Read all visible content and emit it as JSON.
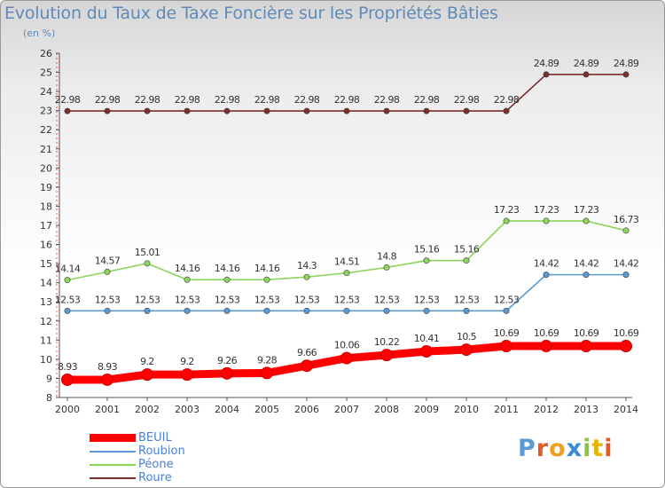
{
  "page": {
    "title": "Evolution du Taux de Taxe Foncière sur les Propriétés Bâties",
    "subtitle": "(en %)"
  },
  "logo": {
    "text": "Proxiti",
    "letters": [
      {
        "ch": "P",
        "color": "#5b9bd5"
      },
      {
        "ch": "r",
        "color": "#e05a2a"
      },
      {
        "ch": "o",
        "color": "#f0a020"
      },
      {
        "ch": "x",
        "color": "#3b8ad6"
      },
      {
        "ch": "i",
        "color": "#8cc63f"
      },
      {
        "ch": "t",
        "color": "#e8b400"
      },
      {
        "ch": "i",
        "color": "#e05a2a"
      }
    ]
  },
  "legend_label_color": "#4a7fd4",
  "chart_data": {
    "type": "line",
    "title": "Evolution du Taux de Taxe Foncière sur les Propriétés Bâties",
    "subtitle": "(en %)",
    "xlabel": "",
    "ylabel": "",
    "x": [
      "2000",
      "2001",
      "2002",
      "2003",
      "2004",
      "2005",
      "2006",
      "2007",
      "2008",
      "2009",
      "2010",
      "2011",
      "2012",
      "2013",
      "2014"
    ],
    "ylim": [
      8,
      26
    ],
    "yticks": [
      8,
      9,
      10,
      11,
      12,
      13,
      14,
      15,
      16,
      17,
      18,
      19,
      20,
      21,
      22,
      23,
      24,
      25,
      26
    ],
    "grid": false,
    "legend_position": "bottom-left",
    "series": [
      {
        "name": "BEUIL",
        "color": "#ff0000",
        "values": [
          8.93,
          8.93,
          9.2,
          9.2,
          9.26,
          9.28,
          9.66,
          10.06,
          10.22,
          10.41,
          10.5,
          10.69,
          10.69,
          10.69,
          10.69
        ],
        "labels": [
          "8.93",
          "8.93",
          "9.2",
          "9.2",
          "9.26",
          "9.28",
          "9.66",
          "10.06",
          "10.22",
          "10.41",
          "10.5",
          "10.69",
          "10.69",
          "10.69",
          "10.69"
        ]
      },
      {
        "name": "Roubion",
        "color": "#5b9bd5",
        "values": [
          12.53,
          12.53,
          12.53,
          12.53,
          12.53,
          12.53,
          12.53,
          12.53,
          12.53,
          12.53,
          12.53,
          12.53,
          14.42,
          14.42,
          14.42
        ],
        "labels": [
          "12.53",
          "12.53",
          "12.53",
          "12.53",
          "12.53",
          "12.53",
          "12.53",
          "12.53",
          "12.53",
          "12.53",
          "12.53",
          "12.53",
          "14.42",
          "14.42",
          "14.42"
        ]
      },
      {
        "name": "Péone",
        "color": "#8cd45a",
        "values": [
          14.14,
          14.57,
          15.01,
          14.16,
          14.16,
          14.16,
          14.3,
          14.51,
          14.8,
          15.16,
          15.16,
          17.23,
          17.23,
          17.23,
          16.73
        ],
        "labels": [
          "14.14",
          "14.57",
          "15.01",
          "14.16",
          "14.16",
          "14.16",
          "14.3",
          "14.51",
          "14.8",
          "15.16",
          "15.16",
          "17.23",
          "17.23",
          "17.23",
          "16.73"
        ]
      },
      {
        "name": "Roure",
        "color": "#7a2e2e",
        "values": [
          22.98,
          22.98,
          22.98,
          22.98,
          22.98,
          22.98,
          22.98,
          22.98,
          22.98,
          22.98,
          22.98,
          22.98,
          24.89,
          24.89,
          24.89
        ],
        "labels": [
          "22.98",
          "22.98",
          "22.98",
          "22.98",
          "22.98",
          "22.98",
          "22.98",
          "22.98",
          "22.98",
          "22.98",
          "22.98",
          "22.98",
          "24.89",
          "24.89",
          "24.89"
        ]
      }
    ]
  }
}
